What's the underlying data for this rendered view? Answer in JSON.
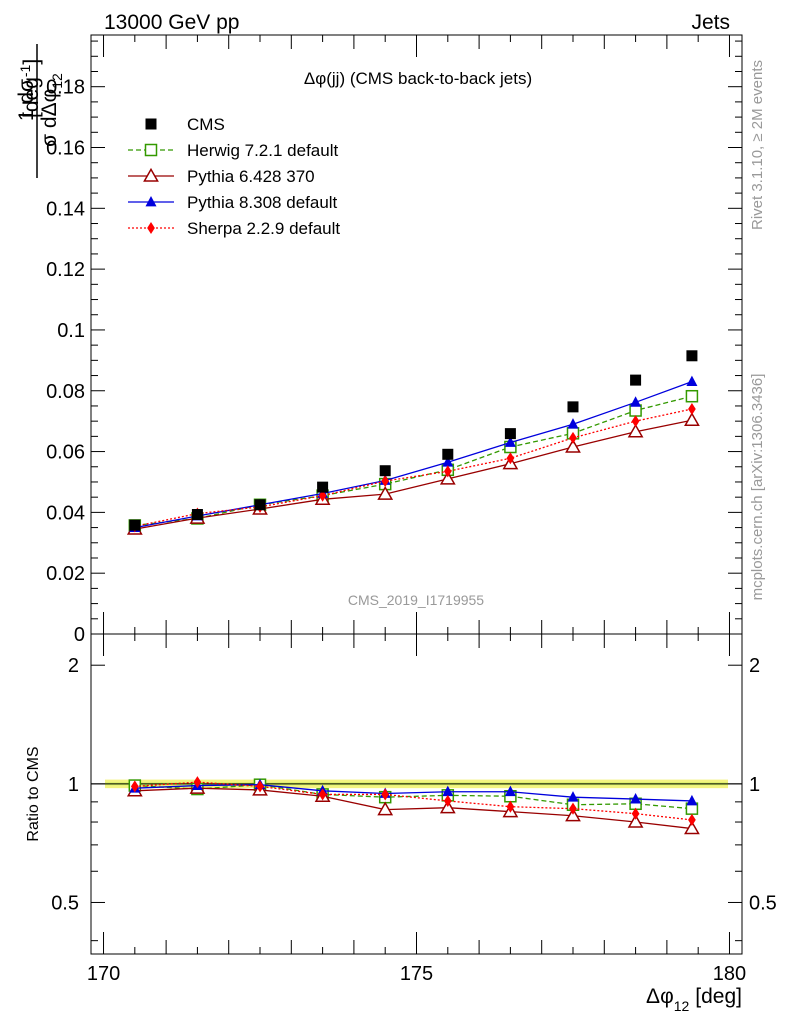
{
  "header": {
    "energy_label": "13000 GeV pp",
    "category": "Jets",
    "plot_title": "Δφ(jj) (CMS back-to-back jets)",
    "analysis_id": "CMS_2019_I1719955",
    "rivet_label": "Rivet 3.1.10, ≥ 2M events",
    "site_label": "mcplots.cern.ch [arXiv:1306.3436]"
  },
  "axes": {
    "ylabel_main_num": "1 dσ",
    "ylabel_main_den": "σ dΔφ",
    "ylabel_main_sub": "12",
    "ylabel_main_unit": "[deg",
    "ylabel_main_unit_sup": "-1",
    "ylabel_main_unit_close": "]",
    "ylabel_ratio": "Ratio to CMS",
    "xlabel_main": "Δφ",
    "xlabel_sub": "12",
    "xlabel_unit": "[deg]"
  },
  "chart_data": {
    "type": "line",
    "x": [
      170.5,
      171.5,
      172.5,
      173.5,
      174.5,
      175.5,
      176.5,
      177.5,
      178.5,
      179.4
    ],
    "xlim": [
      169.8,
      180.2
    ],
    "x_ticks": [
      170,
      175,
      180
    ],
    "x_tick_labels": [
      "170",
      "175",
      "180"
    ],
    "ylim_main": [
      0,
      0.197
    ],
    "y_ticks_main": [
      0,
      0.02,
      0.04,
      0.06,
      0.08,
      0.1,
      0.12,
      0.14,
      0.16,
      0.18
    ],
    "y_tick_labels_main": [
      "0",
      "0.02",
      "0.04",
      "0.06",
      "0.08",
      "0.1",
      "0.12",
      "0.14",
      "0.16",
      "0.18"
    ],
    "ylim_ratio": [
      0.37,
      2.4
    ],
    "y_scale_ratio": "log",
    "y_ticks_ratio": [
      0.5,
      1,
      2
    ],
    "y_tick_labels_ratio": [
      "0.5",
      "1",
      "2"
    ],
    "legend_position": "top-left",
    "series": [
      {
        "name": "CMS",
        "color": "#000000",
        "marker": "square-filled",
        "line": "none",
        "values": [
          0.0358,
          0.0393,
          0.0425,
          0.0483,
          0.0537,
          0.0591,
          0.0659,
          0.0747,
          0.0835,
          0.0915
        ],
        "ratio": [
          1,
          1,
          1,
          1,
          1,
          1,
          1,
          1,
          1,
          1
        ]
      },
      {
        "name": "Herwig 7.2.1 default",
        "color": "#339900",
        "marker": "square-open",
        "line": "dashed",
        "values": [
          0.0357,
          0.038,
          0.0425,
          0.0455,
          0.0493,
          0.054,
          0.0615,
          0.066,
          0.0735,
          0.0782
        ],
        "ratio": [
          0.99,
          0.97,
          0.995,
          0.94,
          0.925,
          0.935,
          0.93,
          0.885,
          0.89,
          0.865
        ]
      },
      {
        "name": "Pythia 6.428 370",
        "color": "#990000",
        "marker": "triangle-open",
        "line": "solid",
        "values": [
          0.0345,
          0.0381,
          0.0411,
          0.0443,
          0.046,
          0.051,
          0.056,
          0.0615,
          0.0665,
          0.0703
        ],
        "ratio": [
          0.96,
          0.975,
          0.965,
          0.93,
          0.86,
          0.87,
          0.85,
          0.83,
          0.8,
          0.77
        ]
      },
      {
        "name": "Pythia 8.308 default",
        "color": "#0000dd",
        "marker": "triangle-filled",
        "line": "solid",
        "values": [
          0.035,
          0.0388,
          0.0425,
          0.0462,
          0.0505,
          0.0565,
          0.063,
          0.069,
          0.0762,
          0.083
        ],
        "ratio": [
          0.975,
          0.99,
          0.995,
          0.96,
          0.945,
          0.955,
          0.955,
          0.925,
          0.915,
          0.905
        ]
      },
      {
        "name": "Sherpa 2.2.9 default",
        "color": "#ff0000",
        "marker": "diamond-filled",
        "line": "dotted",
        "values": [
          0.0354,
          0.0396,
          0.0418,
          0.0455,
          0.0503,
          0.0535,
          0.0578,
          0.0645,
          0.07,
          0.074
        ],
        "ratio": [
          0.985,
          1.01,
          0.985,
          0.94,
          0.94,
          0.905,
          0.875,
          0.865,
          0.84,
          0.81
        ]
      }
    ]
  }
}
